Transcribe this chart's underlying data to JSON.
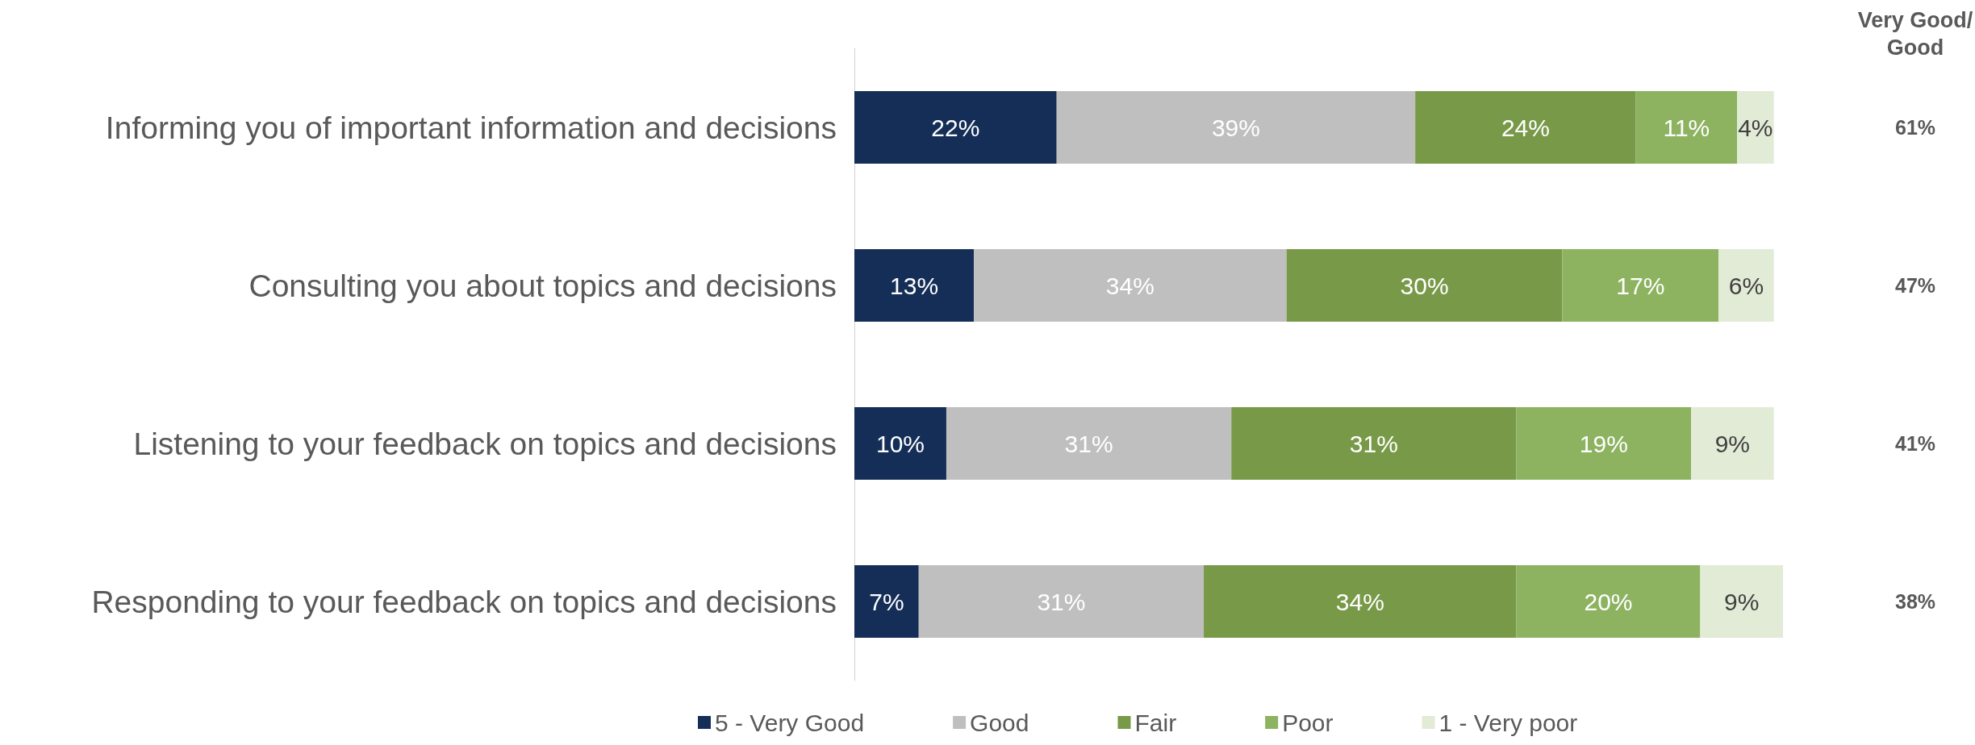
{
  "chart_data": {
    "type": "bar",
    "orientation": "horizontal",
    "stacked": true,
    "categories": [
      "Informing you of important information and decisions",
      "Consulting you about topics and decisions",
      "Listening to your feedback on topics and decisions",
      "Responding to your feedback on topics and decisions"
    ],
    "series": [
      {
        "name": "5 - Very Good",
        "color": "#152e57",
        "values": [
          22,
          13,
          10,
          7
        ],
        "value_labels": [
          "22%",
          "13%",
          "10%",
          "7%"
        ]
      },
      {
        "name": "Good",
        "color": "#bfbfbf",
        "values": [
          39,
          34,
          31,
          31
        ],
        "value_labels": [
          "39%",
          "34%",
          "31%",
          "31%"
        ]
      },
      {
        "name": "Fair",
        "color": "#789a48",
        "values": [
          24,
          30,
          31,
          34
        ],
        "value_labels": [
          "24%",
          "30%",
          "31%",
          "34%"
        ]
      },
      {
        "name": "Poor",
        "color": "#8db360",
        "values": [
          11,
          17,
          19,
          20
        ],
        "value_labels": [
          "11%",
          "17%",
          "19%",
          "20%"
        ]
      },
      {
        "name": "1 - Very poor",
        "color": "#e2ebd6",
        "values": [
          4,
          6,
          9,
          9
        ],
        "value_labels": [
          "4%",
          "6%",
          "9%",
          "9%"
        ]
      }
    ],
    "annotations": [
      "Very Good/ Good",
      "61%",
      "47%",
      "41%",
      "38%"
    ],
    "legend": "bottom",
    "grid": false
  }
}
